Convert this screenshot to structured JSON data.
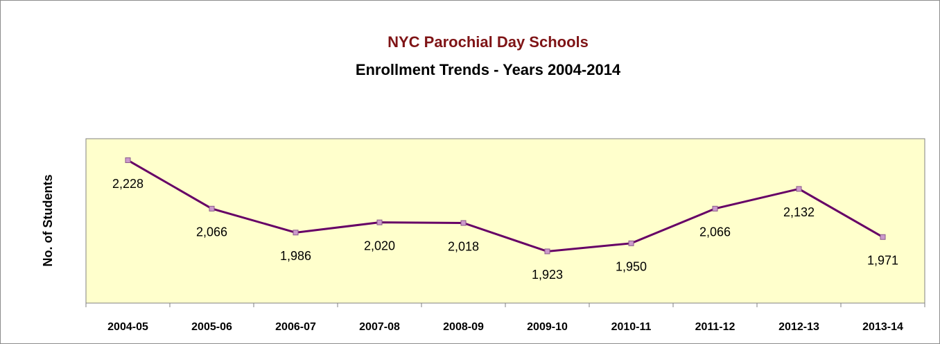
{
  "chart_data": {
    "type": "line",
    "title": "NYC Parochial Day Schools",
    "subtitle": "Enrollment Trends - Years 2004-2014",
    "y_label": "No. of Students",
    "categories": [
      "2004-05",
      "2005-06",
      "2006-07",
      "2007-08",
      "2008-09",
      "2009-10",
      "2010-11",
      "2011-12",
      "2012-13",
      "2013-14"
    ],
    "values": [
      2228,
      2066,
      1986,
      2020,
      2018,
      1923,
      1950,
      2066,
      2132,
      1971
    ],
    "value_labels": [
      "2,228",
      "2,066",
      "1,986",
      "2,020",
      "2,018",
      "1,923",
      "1,950",
      "2,066",
      "2,132",
      "1,971"
    ],
    "color": "#660066",
    "marker_color": "#cc99cc",
    "background": "#ffffcc",
    "ylim": [
      1750,
      2300
    ]
  }
}
